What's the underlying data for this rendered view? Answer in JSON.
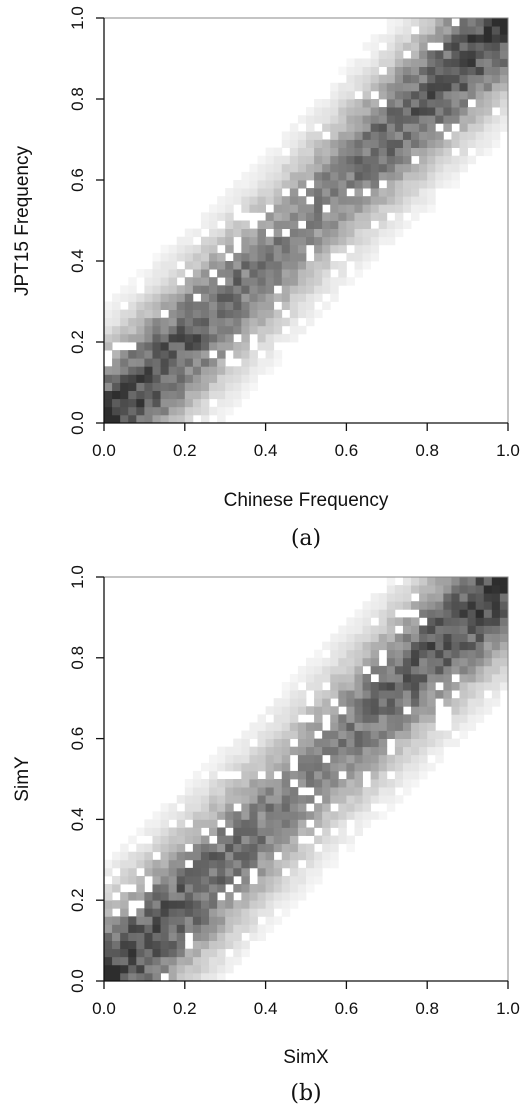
{
  "chart_data": [
    {
      "type": "heatmap",
      "caption": "(a)",
      "xlabel": "Chinese Frequency",
      "ylabel": "JPT15 Frequency",
      "xlim": [
        0,
        1
      ],
      "ylim": [
        0,
        1
      ],
      "xticks": [
        "0.0",
        "0.2",
        "0.4",
        "0.6",
        "0.8",
        "1.0"
      ],
      "yticks": [
        "0.0",
        "0.2",
        "0.4",
        "0.6",
        "0.8",
        "1.0"
      ],
      "bins": 50,
      "band_width": 0.115,
      "corner_peaks": [
        [
          0.0,
          0.0
        ],
        [
          1.0,
          1.0
        ]
      ],
      "colormap": [
        "#ffffff",
        "#000000"
      ],
      "grid": false
    },
    {
      "type": "heatmap",
      "caption": "(b)",
      "xlabel": "SimX",
      "ylabel": "SimY",
      "xlim": [
        0,
        1
      ],
      "ylim": [
        0,
        1
      ],
      "xticks": [
        "0.0",
        "0.2",
        "0.4",
        "0.6",
        "0.8",
        "1.0"
      ],
      "yticks": [
        "0.0",
        "0.2",
        "0.4",
        "0.6",
        "0.8",
        "1.0"
      ],
      "bins": 50,
      "band_width": 0.12,
      "corner_peaks": [
        [
          0.0,
          0.0
        ],
        [
          1.0,
          1.0
        ]
      ],
      "colormap": [
        "#ffffff",
        "#000000"
      ],
      "grid": false
    }
  ]
}
